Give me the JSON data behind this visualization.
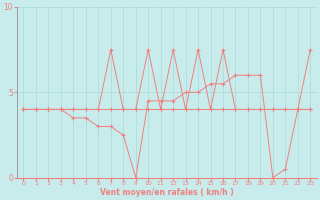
{
  "xlabel": "Vent moyen/en rafales ( km/h )",
  "bg_color": "#c8ecec",
  "line_color": "#f08080",
  "grid_color": "#a8d8d8",
  "x": [
    0,
    1,
    2,
    3,
    4,
    5,
    6,
    7,
    8,
    9,
    10,
    11,
    12,
    13,
    14,
    15,
    16,
    17,
    18,
    19,
    20,
    21,
    22,
    23
  ],
  "y_mean": [
    4.0,
    4.0,
    4.0,
    4.0,
    4.0,
    4.0,
    4.0,
    4.0,
    4.0,
    4.0,
    4.0,
    4.0,
    4.0,
    4.0,
    4.0,
    4.0,
    4.0,
    4.0,
    4.0,
    4.0,
    4.0,
    4.0,
    4.0,
    4.0
  ],
  "y_upper": [
    4.0,
    4.0,
    4.0,
    4.0,
    4.0,
    4.0,
    4.0,
    7.5,
    4.0,
    4.0,
    7.5,
    4.0,
    7.5,
    4.0,
    7.5,
    4.0,
    7.5,
    4.0,
    4.0,
    4.0,
    4.0,
    4.0,
    4.0,
    7.5
  ],
  "y_lower": [
    4.0,
    4.0,
    4.0,
    4.0,
    3.5,
    3.5,
    3.0,
    3.0,
    2.5,
    0.0,
    4.5,
    4.5,
    4.5,
    5.0,
    5.0,
    5.5,
    5.5,
    6.0,
    6.0,
    6.0,
    0.0,
    0.5,
    4.0,
    4.0
  ],
  "ylim": [
    0,
    10
  ],
  "xlim": [
    -0.5,
    23.5
  ],
  "yticks": [
    0,
    5,
    10
  ],
  "xticks": [
    0,
    1,
    2,
    3,
    4,
    5,
    6,
    7,
    8,
    9,
    10,
    11,
    12,
    13,
    14,
    15,
    16,
    17,
    18,
    19,
    20,
    21,
    22,
    23
  ]
}
